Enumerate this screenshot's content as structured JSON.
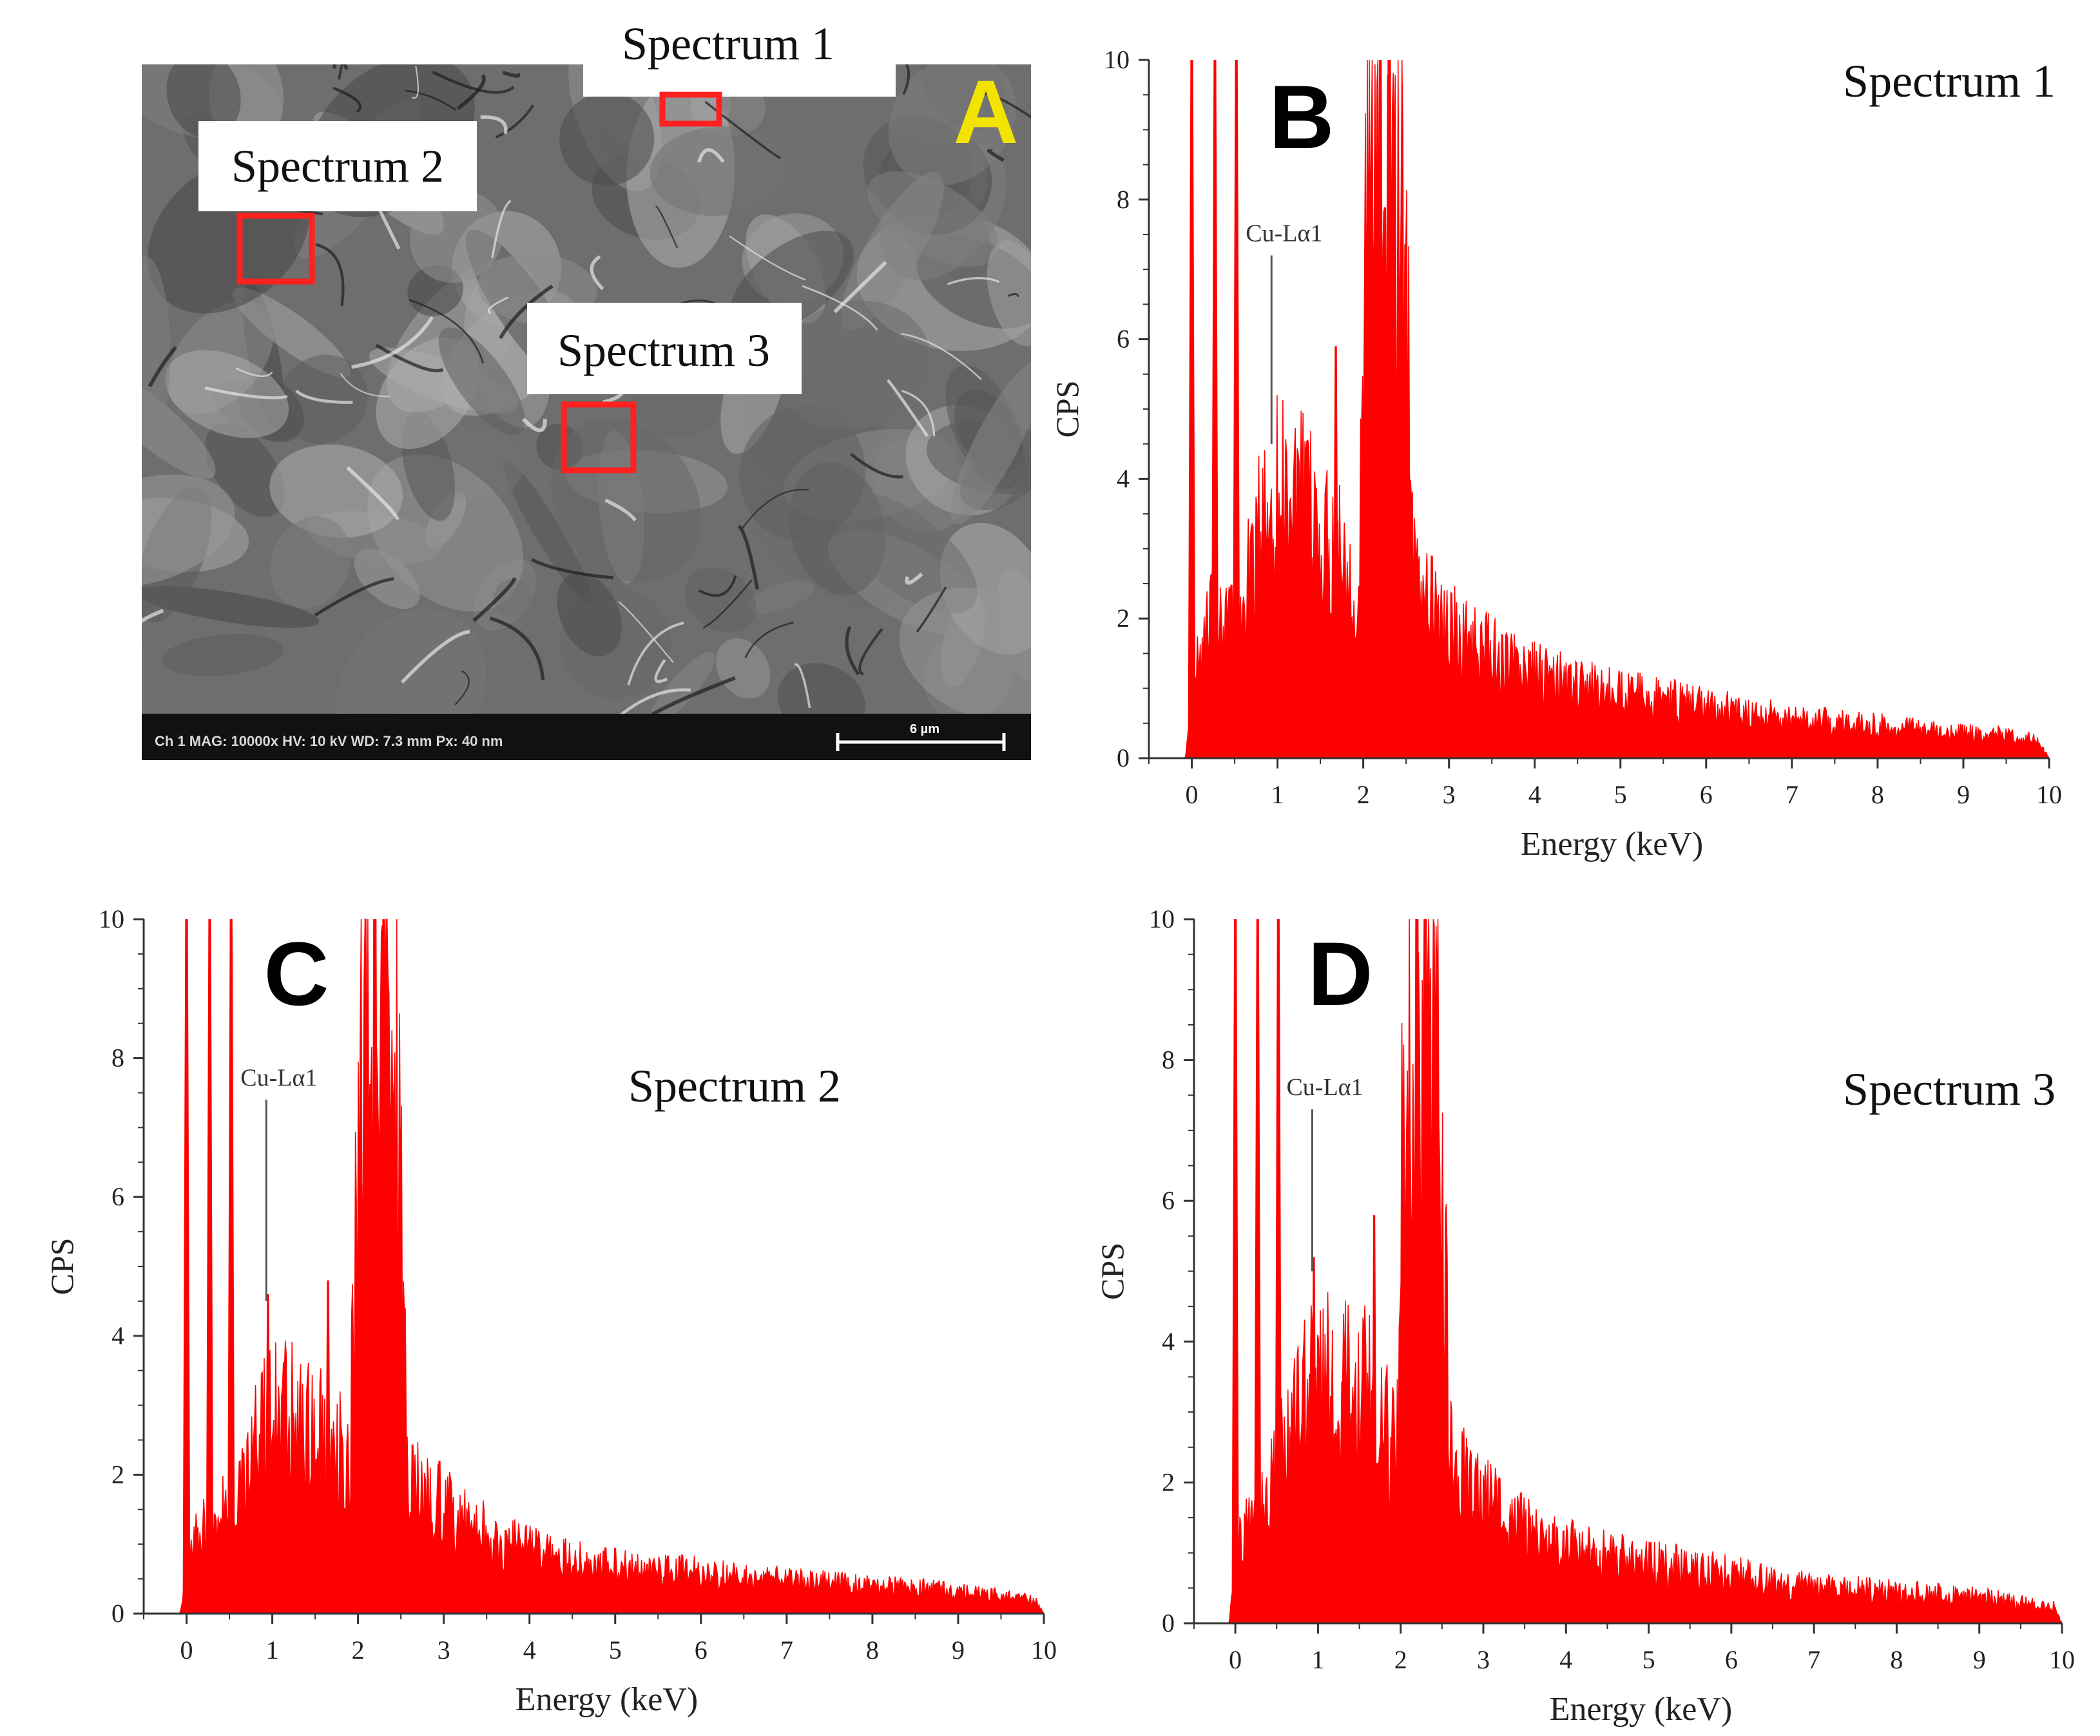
{
  "colors": {
    "spectrum": "#ff0000",
    "marker_box": "#ff2020",
    "panel_letter_A": "#f2e300",
    "sem_background": "#6e6e6e",
    "axis": "#333333"
  },
  "sem_image": {
    "panel_letter": "A",
    "labels": [
      "Spectrum 1",
      "Spectrum 2",
      "Spectrum 3"
    ],
    "info_bar": "Ch 1    MAG: 10000x    HV: 10 kV    WD: 7.3 mm    Px: 40 nm",
    "scale_bar_text": "6 µm"
  },
  "chart_data": [
    {
      "type": "area",
      "panel_letter": "B",
      "title": "Spectrum 1",
      "xlabel": "Energy (keV)",
      "ylabel": "CPS",
      "xlim": [
        -0.5,
        10
      ],
      "ylim": [
        0,
        10
      ],
      "x_ticks": [
        0,
        1,
        2,
        3,
        4,
        5,
        6,
        7,
        8,
        9,
        10
      ],
      "x_tick_labels": [
        "0",
        "1",
        "2",
        "3",
        "4",
        "5",
        "6",
        "7",
        "8",
        "9",
        "10"
      ],
      "y_ticks": [
        0,
        2,
        4,
        6,
        8,
        10
      ],
      "y_tick_labels": [
        "0",
        "2",
        "4",
        "6",
        "8",
        "10"
      ],
      "annotation": {
        "text": "Cu-Lα1",
        "x": 0.93,
        "y_line_top": 7.2,
        "y_line_bottom": 4.5
      },
      "peaks": [
        [
          0.0,
          11
        ],
        [
          0.27,
          11
        ],
        [
          0.52,
          11
        ],
        [
          1.1,
          4.4
        ],
        [
          1.68,
          5.9
        ],
        [
          2.2,
          11
        ],
        [
          2.3,
          11
        ],
        [
          2.8,
          2.9
        ]
      ],
      "envelope": [
        [
          -0.08,
          0
        ],
        [
          0.05,
          1.3
        ],
        [
          0.3,
          2.4
        ],
        [
          0.6,
          2.2
        ],
        [
          0.7,
          3.0
        ],
        [
          0.9,
          3.9
        ],
        [
          1.1,
          4.2
        ],
        [
          1.3,
          3.8
        ],
        [
          1.5,
          3.4
        ],
        [
          1.75,
          3.3
        ],
        [
          1.95,
          2.6
        ],
        [
          2.05,
          9.0
        ],
        [
          2.45,
          9.0
        ],
        [
          2.6,
          3.0
        ],
        [
          2.8,
          2.2
        ],
        [
          3.2,
          1.8
        ],
        [
          3.6,
          1.5
        ],
        [
          4.0,
          1.3
        ],
        [
          4.5,
          1.1
        ],
        [
          5.0,
          1.0
        ],
        [
          5.5,
          0.9
        ],
        [
          6.0,
          0.8
        ],
        [
          6.5,
          0.7
        ],
        [
          7.0,
          0.6
        ],
        [
          7.5,
          0.55
        ],
        [
          8.0,
          0.5
        ],
        [
          8.5,
          0.45
        ],
        [
          9.0,
          0.4
        ],
        [
          9.5,
          0.35
        ],
        [
          9.85,
          0.3
        ],
        [
          10.0,
          0
        ]
      ]
    },
    {
      "type": "area",
      "panel_letter": "C",
      "title": "Spectrum 2",
      "xlabel": "Energy (keV)",
      "ylabel": "CPS",
      "xlim": [
        -0.5,
        10
      ],
      "ylim": [
        0,
        10
      ],
      "x_ticks": [
        0,
        1,
        2,
        3,
        4,
        5,
        6,
        7,
        8,
        9,
        10
      ],
      "x_tick_labels": [
        "0",
        "1",
        "2",
        "3",
        "4",
        "5",
        "6",
        "7",
        "8",
        "9",
        "10"
      ],
      "y_ticks": [
        0,
        2,
        4,
        6,
        8,
        10
      ],
      "y_tick_labels": [
        "0",
        "2",
        "4",
        "6",
        "8",
        "10"
      ],
      "annotation": {
        "text": "Cu-Lα1",
        "x": 0.93,
        "y_line_top": 7.4,
        "y_line_bottom": 4.5
      },
      "peaks": [
        [
          0.0,
          11
        ],
        [
          0.27,
          11
        ],
        [
          0.52,
          11
        ],
        [
          0.95,
          4.6
        ],
        [
          1.65,
          4.8
        ],
        [
          2.2,
          11
        ],
        [
          2.3,
          11
        ],
        [
          2.95,
          2.2
        ]
      ],
      "envelope": [
        [
          -0.08,
          0
        ],
        [
          0.05,
          1.0
        ],
        [
          0.3,
          1.5
        ],
        [
          0.6,
          1.8
        ],
        [
          0.8,
          2.6
        ],
        [
          1.0,
          3.2
        ],
        [
          1.2,
          3.1
        ],
        [
          1.4,
          2.9
        ],
        [
          1.65,
          2.9
        ],
        [
          1.9,
          2.3
        ],
        [
          2.05,
          9.0
        ],
        [
          2.45,
          9.0
        ],
        [
          2.6,
          2.0
        ],
        [
          2.9,
          1.7
        ],
        [
          3.3,
          1.4
        ],
        [
          3.7,
          1.1
        ],
        [
          4.2,
          0.9
        ],
        [
          4.8,
          0.75
        ],
        [
          5.4,
          0.7
        ],
        [
          6.0,
          0.65
        ],
        [
          6.6,
          0.55
        ],
        [
          7.2,
          0.5
        ],
        [
          7.8,
          0.45
        ],
        [
          8.4,
          0.4
        ],
        [
          9.0,
          0.35
        ],
        [
          9.5,
          0.28
        ],
        [
          9.9,
          0.2
        ],
        [
          10.0,
          0
        ]
      ]
    },
    {
      "type": "area",
      "panel_letter": "D",
      "title": "Spectrum 3",
      "xlabel": "Energy (keV)",
      "ylabel": "CPS",
      "xlim": [
        -0.5,
        10
      ],
      "ylim": [
        0,
        10
      ],
      "x_ticks": [
        0,
        1,
        2,
        3,
        4,
        5,
        6,
        7,
        8,
        9,
        10
      ],
      "x_tick_labels": [
        "0",
        "1",
        "2",
        "3",
        "4",
        "5",
        "6",
        "7",
        "8",
        "9",
        "10"
      ],
      "y_ticks": [
        0,
        2,
        4,
        6,
        8,
        10
      ],
      "y_tick_labels": [
        "0",
        "2",
        "4",
        "6",
        "8",
        "10"
      ],
      "annotation": {
        "text": "Cu-Lα1",
        "x": 0.93,
        "y_line_top": 7.3,
        "y_line_bottom": 5.0
      },
      "peaks": [
        [
          0.0,
          11
        ],
        [
          0.27,
          11
        ],
        [
          0.52,
          11
        ],
        [
          0.95,
          5.2
        ],
        [
          1.68,
          5.8
        ],
        [
          2.2,
          11
        ],
        [
          2.3,
          11
        ],
        [
          2.8,
          2.5
        ]
      ],
      "envelope": [
        [
          -0.08,
          0
        ],
        [
          0.05,
          1.2
        ],
        [
          0.3,
          1.8
        ],
        [
          0.6,
          2.6
        ],
        [
          0.8,
          3.4
        ],
        [
          1.0,
          4.0
        ],
        [
          1.2,
          3.7
        ],
        [
          1.45,
          3.6
        ],
        [
          1.7,
          3.5
        ],
        [
          1.95,
          2.4
        ],
        [
          2.05,
          9.0
        ],
        [
          2.45,
          9.0
        ],
        [
          2.6,
          2.7
        ],
        [
          2.9,
          2.0
        ],
        [
          3.3,
          1.6
        ],
        [
          3.7,
          1.3
        ],
        [
          4.2,
          1.1
        ],
        [
          4.8,
          0.95
        ],
        [
          5.4,
          0.85
        ],
        [
          6.0,
          0.75
        ],
        [
          6.6,
          0.6
        ],
        [
          7.2,
          0.55
        ],
        [
          7.8,
          0.5
        ],
        [
          8.4,
          0.45
        ],
        [
          9.0,
          0.4
        ],
        [
          9.5,
          0.32
        ],
        [
          9.9,
          0.25
        ],
        [
          10.0,
          0
        ]
      ]
    }
  ]
}
